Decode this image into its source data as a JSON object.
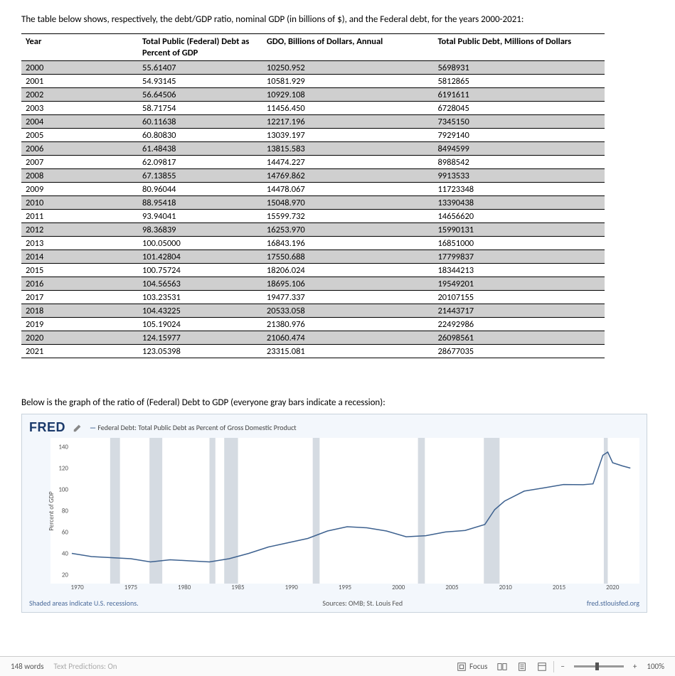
{
  "intro": "The table below shows, respectively, the debt/GDP ratio, nominal GDP (in billions of $), and the Federal debt, for the years 2000-2021:",
  "headers": {
    "c0": "Year",
    "c1": "Total Public (Federal) Debt as Percent of GDP",
    "c2": "GDO, Billions of Dollars, Annual",
    "c3": "Total Public Debt, Millions of Dollars"
  },
  "rows": [
    {
      "y": "2000",
      "a": "55.61407",
      "b": "10250.952",
      "c": "5698931"
    },
    {
      "y": "2001",
      "a": "54.93145",
      "b": "10581.929",
      "c": "5812865"
    },
    {
      "y": "2002",
      "a": "56.64506",
      "b": "10929.108",
      "c": "6191611"
    },
    {
      "y": "2003",
      "a": "58.71754",
      "b": "11456.450",
      "c": "6728045"
    },
    {
      "y": "2004",
      "a": "60.11638",
      "b": "12217.196",
      "c": "7345150"
    },
    {
      "y": "2005",
      "a": "60.80830",
      "b": "13039.197",
      "c": "7929140"
    },
    {
      "y": "2006",
      "a": "61.48438",
      "b": "13815.583",
      "c": "8494599"
    },
    {
      "y": "2007",
      "a": "62.09817",
      "b": "14474.227",
      "c": "8988542"
    },
    {
      "y": "2008",
      "a": "67.13855",
      "b": "14769.862",
      "c": "9913533"
    },
    {
      "y": "2009",
      "a": "80.96044",
      "b": "14478.067",
      "c": "11723348"
    },
    {
      "y": "2010",
      "a": "88.95418",
      "b": "15048.970",
      "c": "13390438"
    },
    {
      "y": "2011",
      "a": "93.94041",
      "b": "15599.732",
      "c": "14656620"
    },
    {
      "y": "2012",
      "a": "98.36839",
      "b": "16253.970",
      "c": "15990131"
    },
    {
      "y": "2013",
      "a": "100.05000",
      "b": "16843.196",
      "c": "16851000"
    },
    {
      "y": "2014",
      "a": "101.42804",
      "b": "17550.688",
      "c": "17799837"
    },
    {
      "y": "2015",
      "a": "100.75724",
      "b": "18206.024",
      "c": "18344213"
    },
    {
      "y": "2016",
      "a": "104.56563",
      "b": "18695.106",
      "c": "19549201"
    },
    {
      "y": "2017",
      "a": "103.23531",
      "b": "19477.337",
      "c": "20107155"
    },
    {
      "y": "2018",
      "a": "104.43225",
      "b": "20533.058",
      "c": "21443717"
    },
    {
      "y": "2019",
      "a": "105.19024",
      "b": "21380.976",
      "c": "22492986"
    },
    {
      "y": "2020",
      "a": "124.15977",
      "b": "21060.474",
      "c": "26098561"
    },
    {
      "y": "2021",
      "a": "123.05398",
      "b": "23315.081",
      "c": "28677035"
    }
  ],
  "caption2": "Below is the graph of the ratio of (Federal) Debt to GDP (everyone gray bars indicate a recession):",
  "chart": {
    "logo": "FRED",
    "series_label": "Federal Debt: Total Public Debt as Percent of Gross Domestic Product",
    "yaxis_label": "Percent of GDP",
    "yticks": [
      "20",
      "40",
      "60",
      "80",
      "100",
      "120",
      "140"
    ],
    "xticks": [
      "1970",
      "1975",
      "1980",
      "1985",
      "1990",
      "1995",
      "2000",
      "2005",
      "2010",
      "2015",
      "2020"
    ],
    "footer_left": "Shaded areas indicate U.S. recessions.",
    "footer_mid": "Sources: OMB; St. Louis Fed",
    "footer_right": "fred.stlouisfed.org",
    "x_range": [
      1966,
      2023
    ],
    "y_range": [
      15,
      145
    ],
    "line_color": "#3d618f",
    "recession_color": "#d5dbe2",
    "bg": "#f3f7fc",
    "recessions": [
      [
        1969.9,
        1970.9
      ],
      [
        1973.9,
        1975.2
      ],
      [
        1980.0,
        1980.6
      ],
      [
        1981.5,
        1982.9
      ],
      [
        1990.5,
        1991.2
      ],
      [
        2001.2,
        2001.9
      ],
      [
        2007.9,
        2009.5
      ],
      [
        2020.1,
        2020.5
      ]
    ],
    "data": [
      [
        1966,
        40
      ],
      [
        1968,
        37
      ],
      [
        1970,
        36
      ],
      [
        1972,
        35
      ],
      [
        1974,
        32
      ],
      [
        1976,
        34
      ],
      [
        1978,
        33
      ],
      [
        1980,
        32
      ],
      [
        1982,
        35
      ],
      [
        1984,
        40
      ],
      [
        1986,
        46
      ],
      [
        1988,
        50
      ],
      [
        1990,
        54
      ],
      [
        1992,
        61
      ],
      [
        1994,
        65
      ],
      [
        1996,
        64
      ],
      [
        1998,
        61
      ],
      [
        2000,
        55.6
      ],
      [
        2002,
        56.6
      ],
      [
        2004,
        60.1
      ],
      [
        2006,
        61.5
      ],
      [
        2008,
        67.1
      ],
      [
        2009,
        81.0
      ],
      [
        2010,
        89.0
      ],
      [
        2012,
        98.4
      ],
      [
        2014,
        101.4
      ],
      [
        2016,
        104.6
      ],
      [
        2018,
        104.4
      ],
      [
        2019,
        105.2
      ],
      [
        2020,
        132
      ],
      [
        2020.5,
        135
      ],
      [
        2021,
        125
      ],
      [
        2022,
        122
      ],
      [
        2022.8,
        120
      ]
    ]
  },
  "status": {
    "words": "148 words",
    "predictions": "Text Predictions: On",
    "focus": "Focus",
    "zoom": "100%"
  }
}
